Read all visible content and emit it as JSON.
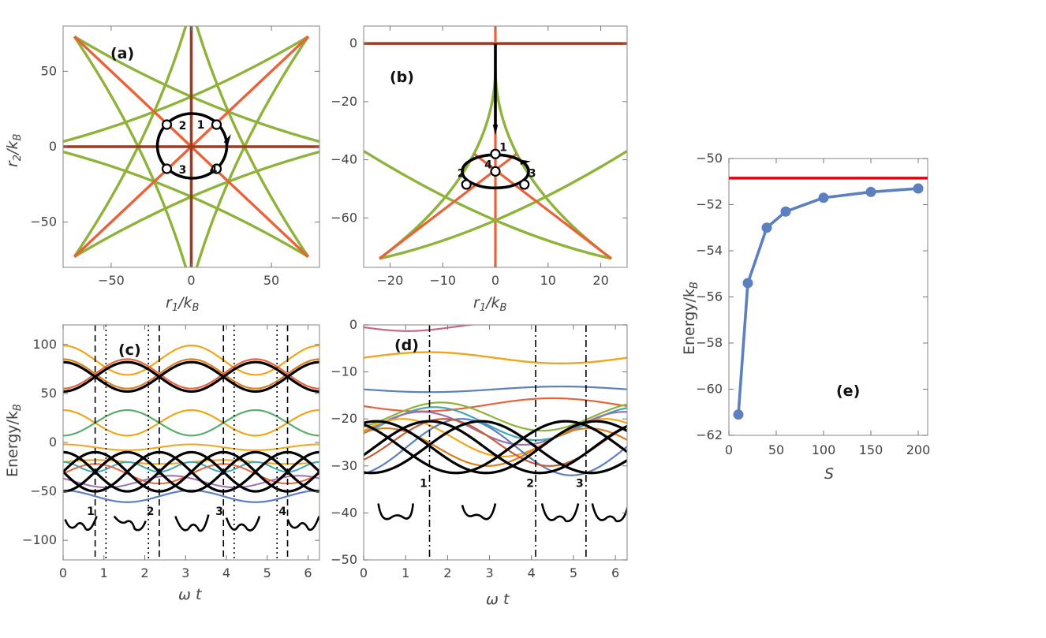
{
  "colors": {
    "frame": "#9a9a9a",
    "black": "#000000",
    "green": "#8fb33a",
    "orange": "#e8633a",
    "brown": "#a0391e",
    "blue": "#5b7fbf",
    "red": "#e8000b",
    "teal": "#3fa7b6",
    "purple": "#9a72b0",
    "yellow": "#e9b52a",
    "green2": "#5aad6b",
    "pink": "#c06a8a",
    "gold": "#f2a51a"
  },
  "chart_data": [
    {
      "panel": "(a)",
      "type": "line",
      "xlabel": "r1/kB",
      "ylabel": "r2/kB",
      "xlim": [
        -80,
        80
      ],
      "ylim": [
        -80,
        80
      ],
      "xticks": [
        "-50",
        "0",
        "50"
      ],
      "yticks": [
        "50",
        "0",
        "-50"
      ],
      "description": "degeneracy lines with a closed circular path",
      "path_markers": [
        "1",
        "2",
        "3",
        "4"
      ]
    },
    {
      "panel": "(b)",
      "type": "line",
      "xlabel": "r1/kB",
      "ylabel": "",
      "xlim": [
        -25,
        25
      ],
      "ylim": [
        -77,
        6
      ],
      "xticks": [
        "-20",
        "-10",
        "0",
        "10",
        "20"
      ],
      "yticks": [
        "0",
        "-20",
        "-40",
        "-60"
      ],
      "path_markers": [
        "1",
        "2",
        "4",
        "3"
      ]
    },
    {
      "panel": "(c)",
      "type": "line",
      "xlabel": "ω t",
      "ylabel": "Energy/kB",
      "xlim": [
        0,
        6.28
      ],
      "ylim": [
        -120,
        120
      ],
      "xticks": [
        "0",
        "1",
        "2",
        "3",
        "4",
        "5",
        "6"
      ],
      "yticks": [
        "100",
        "50",
        "0",
        "-50",
        "-100"
      ],
      "dashed_x": [
        0.785,
        2.356,
        3.927,
        5.498
      ],
      "dotted_x": [
        1.05,
        2.09,
        4.19,
        5.24
      ],
      "markers": [
        "1",
        "2",
        "3",
        "4"
      ]
    },
    {
      "panel": "(d)",
      "type": "line",
      "xlabel": "ω t",
      "ylabel": "",
      "xlim": [
        0,
        6.28
      ],
      "ylim": [
        -50,
        0
      ],
      "xticks": [
        "0",
        "1",
        "2",
        "3",
        "4",
        "5",
        "6"
      ],
      "yticks": [
        "0",
        "-10",
        "-20",
        "-30",
        "-40",
        "-50"
      ],
      "dashdot_x": [
        1.57,
        4.1,
        5.3
      ],
      "markers": [
        "1",
        "2",
        "3"
      ]
    },
    {
      "panel": "(e)",
      "type": "line",
      "xlabel": "S",
      "ylabel": "Energy/kB",
      "xlim": [
        0,
        210
      ],
      "ylim": [
        -62,
        -50
      ],
      "xticks": [
        "0",
        "50",
        "100",
        "150",
        "200"
      ],
      "yticks": [
        "-50",
        "-52",
        "-54",
        "-56",
        "-58",
        "-60",
        "-62"
      ],
      "x": [
        10,
        20,
        40,
        60,
        100,
        150,
        200
      ],
      "values": [
        -61.1,
        -55.4,
        -53.0,
        -52.3,
        -51.7,
        -51.45,
        -51.3
      ],
      "reference_line": -50.85
    }
  ]
}
